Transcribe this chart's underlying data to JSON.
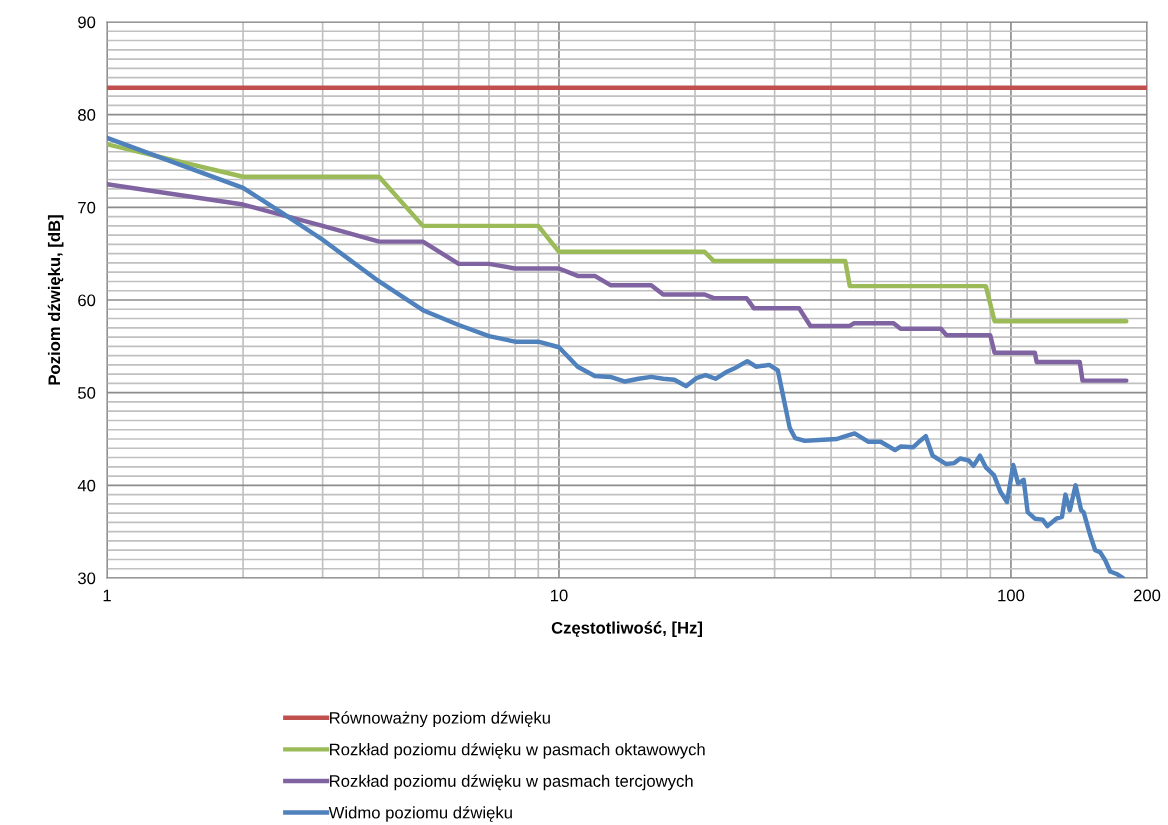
{
  "chart_data": {
    "type": "line",
    "xlabel": "Częstotliwość, [Hz]",
    "ylabel": "Poziom dźwięku, [dB]",
    "log": "x",
    "xlim": [
      1,
      200
    ],
    "ylim": [
      30,
      90
    ],
    "xticks": [
      1,
      {
        "value": 2,
        "label": null
      },
      {
        "value": 3,
        "label": null
      },
      {
        "value": 4,
        "label": null
      },
      {
        "value": 5,
        "label": null
      },
      {
        "value": 6,
        "label": null
      },
      {
        "value": 7,
        "label": null
      },
      {
        "value": 8,
        "label": null
      },
      {
        "value": 9,
        "label": null
      },
      10,
      {
        "value": 20,
        "label": null
      },
      {
        "value": 30,
        "label": null
      },
      {
        "value": 40,
        "label": null
      },
      {
        "value": 50,
        "label": null
      },
      {
        "value": 60,
        "label": null
      },
      {
        "value": 70,
        "label": null
      },
      {
        "value": 80,
        "label": null
      },
      {
        "value": 90,
        "label": null
      },
      100,
      200
    ],
    "yticks": [
      30,
      {
        "value": 31,
        "label": null
      },
      {
        "value": 32,
        "label": null
      },
      {
        "value": 33,
        "label": null
      },
      {
        "value": 34,
        "label": null
      },
      {
        "value": 35,
        "label": null
      },
      {
        "value": 36,
        "label": null
      },
      {
        "value": 37,
        "label": null
      },
      {
        "value": 38,
        "label": null
      },
      {
        "value": 39,
        "label": null
      },
      40,
      {
        "value": 41,
        "label": null
      },
      {
        "value": 42,
        "label": null
      },
      {
        "value": 43,
        "label": null
      },
      {
        "value": 44,
        "label": null
      },
      {
        "value": 45,
        "label": null
      },
      {
        "value": 46,
        "label": null
      },
      {
        "value": 47,
        "label": null
      },
      {
        "value": 48,
        "label": null
      },
      {
        "value": 49,
        "label": null
      },
      50,
      {
        "value": 51,
        "label": null
      },
      {
        "value": 52,
        "label": null
      },
      {
        "value": 53,
        "label": null
      },
      {
        "value": 54,
        "label": null
      },
      {
        "value": 55,
        "label": null
      },
      {
        "value": 56,
        "label": null
      },
      {
        "value": 57,
        "label": null
      },
      {
        "value": 58,
        "label": null
      },
      {
        "value": 59,
        "label": null
      },
      60,
      {
        "value": 61,
        "label": null
      },
      {
        "value": 62,
        "label": null
      },
      {
        "value": 63,
        "label": null
      },
      {
        "value": 64,
        "label": null
      },
      {
        "value": 65,
        "label": null
      },
      {
        "value": 66,
        "label": null
      },
      {
        "value": 67,
        "label": null
      },
      {
        "value": 68,
        "label": null
      },
      {
        "value": 69,
        "label": null
      },
      70,
      {
        "value": 71,
        "label": null
      },
      {
        "value": 72,
        "label": null
      },
      {
        "value": 73,
        "label": null
      },
      {
        "value": 74,
        "label": null
      },
      {
        "value": 75,
        "label": null
      },
      {
        "value": 76,
        "label": null
      },
      {
        "value": 77,
        "label": null
      },
      {
        "value": 78,
        "label": null
      },
      {
        "value": 79,
        "label": null
      },
      80,
      {
        "value": 81,
        "label": null
      },
      {
        "value": 82,
        "label": null
      },
      {
        "value": 83,
        "label": null
      },
      {
        "value": 84,
        "label": null
      },
      {
        "value": 85,
        "label": null
      },
      {
        "value": 86,
        "label": null
      },
      {
        "value": 87,
        "label": null
      },
      {
        "value": 88,
        "label": null
      },
      {
        "value": 89,
        "label": null
      },
      90
    ],
    "grid": true,
    "legend": "bottom",
    "marker": "none",
    "line_style": "solid",
    "series": [
      {
        "name": "Równoważny poziom dźwięku",
        "color": "#c0504d",
        "x": [
          1,
          200
        ],
        "values": [
          82.9,
          82.9
        ]
      },
      {
        "name": "Rozkład poziomu dźwięku w pasmach oktawowych",
        "color": "#9bbb59",
        "x": [
          1,
          2,
          4,
          5,
          9,
          10,
          21,
          22,
          43,
          44,
          88,
          92,
          180
        ],
        "values": [
          76.8,
          73.3,
          73.3,
          68.0,
          68.0,
          65.2,
          65.2,
          64.2,
          64.2,
          61.5,
          61.5,
          57.7,
          57.7
        ]
      },
      {
        "name": "Rozkład poziomu dźwięku w pasmach tercjowych",
        "color": "#8064a2",
        "x": [
          1,
          2,
          3,
          4,
          5,
          6,
          7,
          8,
          10,
          11,
          12,
          13,
          16,
          17,
          21,
          22,
          26,
          27,
          34,
          36,
          44,
          45,
          55,
          57,
          70,
          72,
          90,
          92,
          113,
          114,
          142,
          144,
          180
        ],
        "values": [
          72.5,
          70.3,
          68.0,
          66.3,
          66.3,
          63.9,
          63.9,
          63.4,
          63.4,
          62.6,
          62.6,
          61.6,
          61.6,
          60.6,
          60.6,
          60.2,
          60.2,
          59.1,
          59.1,
          57.2,
          57.2,
          57.5,
          57.5,
          56.9,
          56.9,
          56.2,
          56.2,
          54.3,
          54.3,
          53.3,
          53.3,
          51.3,
          51.3
        ]
      },
      {
        "name": "Widmo poziomu dźwięku",
        "color": "#4f81bd",
        "x": [
          1,
          2,
          2.44,
          3,
          4,
          5,
          6,
          7,
          8,
          9,
          10,
          11,
          12,
          13,
          14,
          15,
          16,
          17,
          18,
          19.1,
          20.2,
          21.1,
          22.2,
          23.4,
          24.4,
          26.1,
          27.3,
          29.2,
          30.5,
          32.4,
          33.3,
          35,
          37.6,
          41.2,
          42.4,
          45.1,
          48.4,
          51.5,
          55.4,
          57.1,
          60.7,
          62.6,
          64.8,
          67.1,
          71.9,
          74.9,
          77.2,
          80.6,
          82.6,
          85.4,
          88.1,
          91.7,
          94.8,
          98,
          101.2,
          103.7,
          106.7,
          108.9,
          113,
          117.5,
          120.4,
          126,
          129.7,
          132,
          135,
          139,
          143,
          144.8,
          150,
          153.6,
          157.4,
          161.7,
          165.8,
          172,
          177
        ],
        "values": [
          77.5,
          72.1,
          69.4,
          66.5,
          62.0,
          58.9,
          57.3,
          56.1,
          55.5,
          55.5,
          54.9,
          52.8,
          51.8,
          51.7,
          51.2,
          51.5,
          51.7,
          51.5,
          51.4,
          50.7,
          51.6,
          51.9,
          51.5,
          52.2,
          52.6,
          53.4,
          52.8,
          53.0,
          52.4,
          46.2,
          45.1,
          44.8,
          44.9,
          45.0,
          45.2,
          45.6,
          44.7,
          44.7,
          43.8,
          44.2,
          44.1,
          44.7,
          45.3,
          43.2,
          42.3,
          42.4,
          42.9,
          42.7,
          42.1,
          43.2,
          41.9,
          41.1,
          39.3,
          38.2,
          42.2,
          40.2,
          40.6,
          37.1,
          36.4,
          36.3,
          35.6,
          36.4,
          36.6,
          39.0,
          37.3,
          40.0,
          37.3,
          37.1,
          34.5,
          33.0,
          32.8,
          31.9,
          30.7,
          30.4,
          30.0
        ]
      }
    ]
  }
}
